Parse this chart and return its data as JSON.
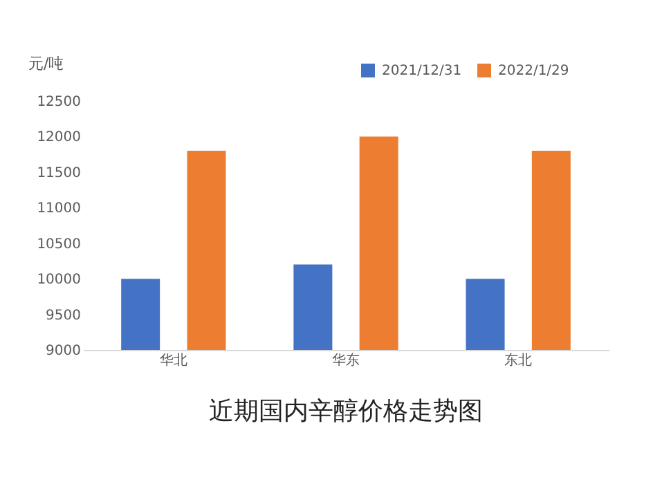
{
  "chart_data": {
    "type": "bar",
    "title": "近期国内辛醇价格走势图",
    "ylabel": "元/吨",
    "categories": [
      "华北",
      "华东",
      "东北"
    ],
    "series": [
      {
        "name": "2021/12/31",
        "color": "#4472c4",
        "values": [
          10000,
          10200,
          10000
        ]
      },
      {
        "name": "2022/1/29",
        "color": "#ed7d31",
        "values": [
          11800,
          12000,
          11800
        ]
      }
    ],
    "ylim": [
      9000,
      12500
    ],
    "yticks": [
      9000,
      9500,
      10000,
      10500,
      11000,
      11500,
      12000,
      12500
    ],
    "grid": false,
    "legend": "top right"
  }
}
